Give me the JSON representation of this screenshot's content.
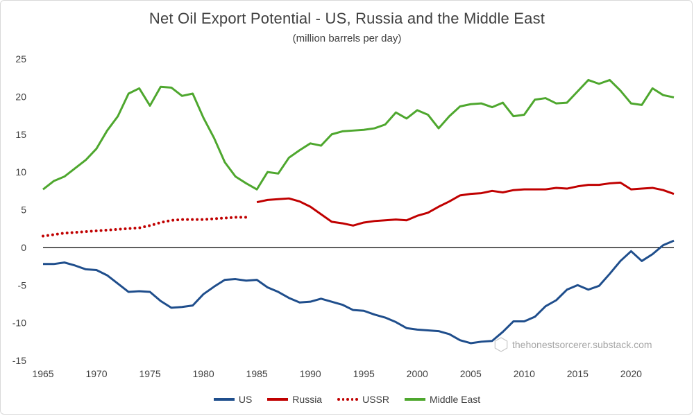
{
  "chart_data": {
    "type": "line",
    "title": "Net Oil Export Potential - US, Russia and the Middle East",
    "subtitle": "(million barrels per day)",
    "xlabel": "",
    "ylabel": "",
    "xlim": [
      1965,
      2024
    ],
    "ylim": [
      -15,
      25
    ],
    "xticks": [
      1965,
      1970,
      1975,
      1980,
      1985,
      1990,
      1995,
      2000,
      2005,
      2010,
      2015,
      2020
    ],
    "yticks": [
      -15,
      -10,
      -5,
      0,
      5,
      10,
      15,
      20,
      25
    ],
    "watermark": "thehonestsorcerer.substack.com",
    "series": [
      {
        "name": "US",
        "color": "#1f4e8c",
        "style": "solid",
        "x_start": 1965,
        "values": [
          -2.2,
          -2.2,
          -2.0,
          -2.4,
          -2.9,
          -3.0,
          -3.7,
          -4.8,
          -5.9,
          -5.8,
          -5.9,
          -7.1,
          -8.0,
          -7.9,
          -7.7,
          -6.2,
          -5.2,
          -4.3,
          -4.2,
          -4.4,
          -4.3,
          -5.3,
          -5.9,
          -6.7,
          -7.3,
          -7.2,
          -6.8,
          -7.2,
          -7.6,
          -8.3,
          -8.4,
          -8.9,
          -9.3,
          -9.9,
          -10.7,
          -10.9,
          -11.0,
          -11.1,
          -11.5,
          -12.3,
          -12.7,
          -12.5,
          -12.4,
          -11.2,
          -9.8,
          -9.8,
          -9.2,
          -7.8,
          -7.0,
          -5.6,
          -5.0,
          -5.6,
          -5.1,
          -3.5,
          -1.8,
          -0.5,
          -1.8,
          -0.9,
          0.3,
          0.9
        ]
      },
      {
        "name": "Russia",
        "color": "#c00000",
        "style": "solid",
        "x_start": 1985,
        "values": [
          6.0,
          6.3,
          6.4,
          6.5,
          6.1,
          5.4,
          4.4,
          3.4,
          3.2,
          2.9,
          3.3,
          3.5,
          3.6,
          3.7,
          3.6,
          4.2,
          4.6,
          5.4,
          6.1,
          6.9,
          7.1,
          7.2,
          7.5,
          7.3,
          7.6,
          7.7,
          7.7,
          7.7,
          7.9,
          7.8,
          8.1,
          8.3,
          8.3,
          8.5,
          8.6,
          7.7,
          7.8,
          7.9,
          7.6,
          7.1
        ]
      },
      {
        "name": "USSR",
        "color": "#c00000",
        "style": "dotted",
        "x_start": 1965,
        "values": [
          1.5,
          1.7,
          1.9,
          2.0,
          2.1,
          2.2,
          2.3,
          2.4,
          2.5,
          2.6,
          2.9,
          3.3,
          3.6,
          3.7,
          3.7,
          3.7,
          3.8,
          3.9,
          4.0,
          4.0
        ]
      },
      {
        "name": "Middle East",
        "color": "#4ea72e",
        "style": "solid",
        "x_start": 1965,
        "values": [
          7.7,
          8.8,
          9.4,
          10.5,
          11.6,
          13.1,
          15.5,
          17.4,
          20.4,
          21.1,
          18.8,
          21.3,
          21.2,
          20.1,
          20.4,
          17.2,
          14.5,
          11.3,
          9.4,
          8.5,
          7.7,
          10.0,
          9.8,
          11.9,
          12.9,
          13.8,
          13.5,
          15.0,
          15.4,
          15.5,
          15.6,
          15.8,
          16.3,
          17.9,
          17.1,
          18.2,
          17.6,
          15.8,
          17.4,
          18.7,
          19.0,
          19.1,
          18.6,
          19.2,
          17.4,
          17.6,
          19.6,
          19.8,
          19.1,
          19.2,
          20.7,
          22.2,
          21.7,
          22.2,
          20.8,
          19.1,
          18.9,
          21.1,
          20.2,
          19.9
        ]
      }
    ]
  }
}
